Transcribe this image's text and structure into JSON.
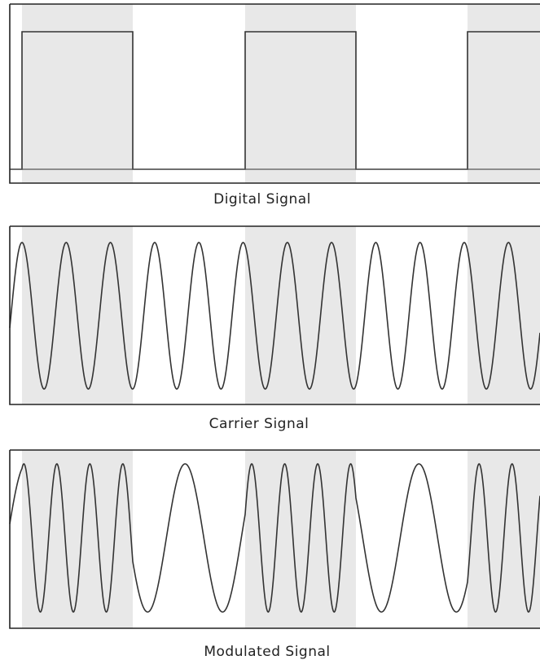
{
  "panels": [
    {
      "label": "Digital Signal"
    },
    {
      "label": "Carrier Signal"
    },
    {
      "label": "Modulated Signal"
    }
  ]
}
